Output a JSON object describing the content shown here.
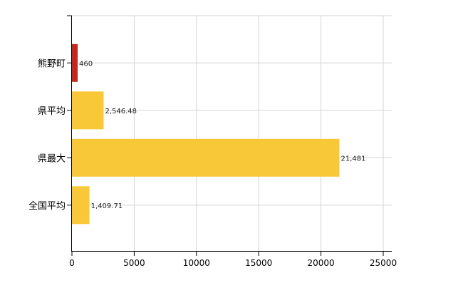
{
  "chart_data": {
    "type": "bar",
    "orientation": "horizontal",
    "title": "",
    "xlabel": "",
    "ylabel": "",
    "categories": [
      "熊野町",
      "県平均",
      "県最大",
      "全国平均"
    ],
    "values": [
      460,
      2546.48,
      21481,
      1409.71
    ],
    "value_labels": [
      "460",
      "2,546.48",
      "21,481",
      "1,409.71"
    ],
    "xlim": [
      0,
      25000
    ],
    "xticks": [
      0,
      5000,
      10000,
      15000,
      20000,
      25000
    ],
    "xtick_labels": [
      "0",
      "5000",
      "10000",
      "15000",
      "20000",
      "25000"
    ],
    "grid": true,
    "legend": "none",
    "colors": [
      "#c3291b",
      "#f9c838",
      "#f9c838",
      "#f9c838"
    ],
    "grid_color": "#d4d4d4",
    "axis_color": "#000000"
  }
}
